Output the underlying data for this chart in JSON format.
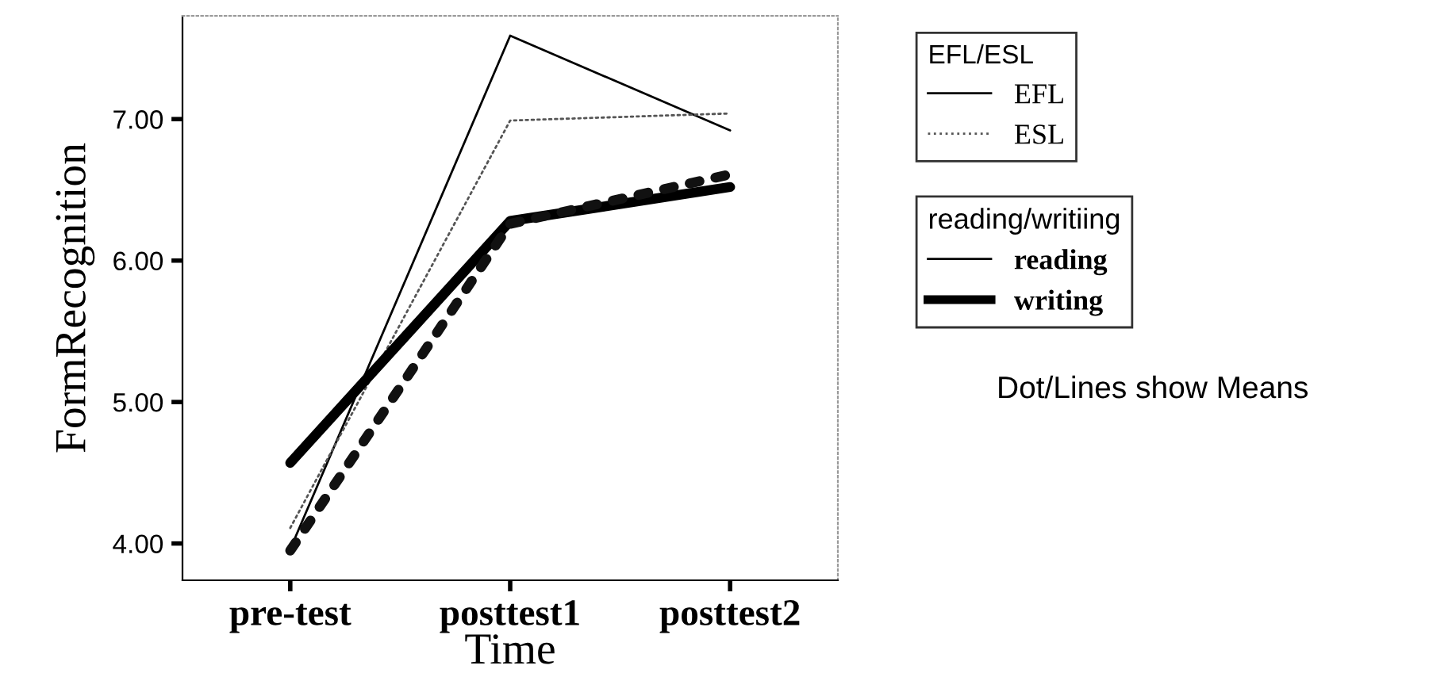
{
  "chart_data": {
    "type": "line",
    "xlabel": "Time",
    "ylabel": "FormRecognition",
    "categories": [
      "pre-test",
      "posttest1",
      "posttest2"
    ],
    "series": [
      {
        "color": "#000000",
        "line_style": "solid",
        "values": [
          3.96,
          7.59,
          6.92
        ]
      },
      {
        "color": "#555555",
        "line_style": "dotted",
        "values": [
          4.11,
          6.99,
          7.04
        ]
      },
      {
        "color": "#000000",
        "line_style": "solid",
        "values": [
          4.57,
          6.28,
          6.52
        ]
      },
      {
        "color": "#111111",
        "line_style": "dotted",
        "values": [
          3.95,
          6.26,
          6.61
        ]
      }
    ],
    "ylim": [
      3.74,
      7.73
    ],
    "yticks": [
      {
        "value": 4,
        "label": "4.00"
      },
      {
        "value": 5,
        "label": "5.00"
      },
      {
        "value": 6,
        "label": "6.00"
      },
      {
        "value": 7,
        "label": "7.00"
      }
    ],
    "grid": false,
    "marker": "none",
    "annotations": [
      "EFL/ESL",
      "EFL",
      "ESL",
      "reading/writiing",
      "reading",
      "writing",
      "Dot/Lines show Means"
    ]
  }
}
